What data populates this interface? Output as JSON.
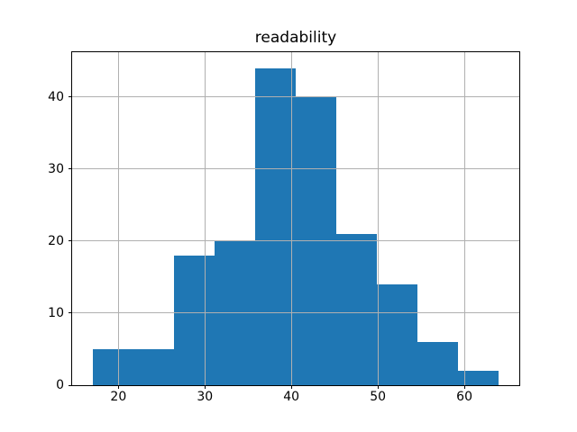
{
  "chart_data": {
    "type": "bar",
    "subtype": "histogram",
    "title": "readability",
    "bin_edges": [
      17.0,
      21.7,
      26.4,
      31.1,
      35.8,
      40.5,
      45.2,
      49.9,
      54.6,
      59.3,
      64.0
    ],
    "counts": [
      5,
      5,
      18,
      20,
      44,
      40,
      21,
      14,
      6,
      2
    ],
    "x_ticks": [
      20,
      30,
      40,
      50,
      60
    ],
    "y_ticks": [
      0,
      10,
      20,
      30,
      40
    ],
    "xlim": [
      14.65,
      66.35
    ],
    "ylim": [
      0,
      46.2
    ],
    "xlabel": "",
    "ylabel": "",
    "grid": true,
    "grid_above_bars": true,
    "legend": false,
    "bar_color": "#1f77b4",
    "grid_color": "#b0b0b0",
    "spine_color": "#000000",
    "text_color": "#000000",
    "background_color": "#ffffff"
  }
}
